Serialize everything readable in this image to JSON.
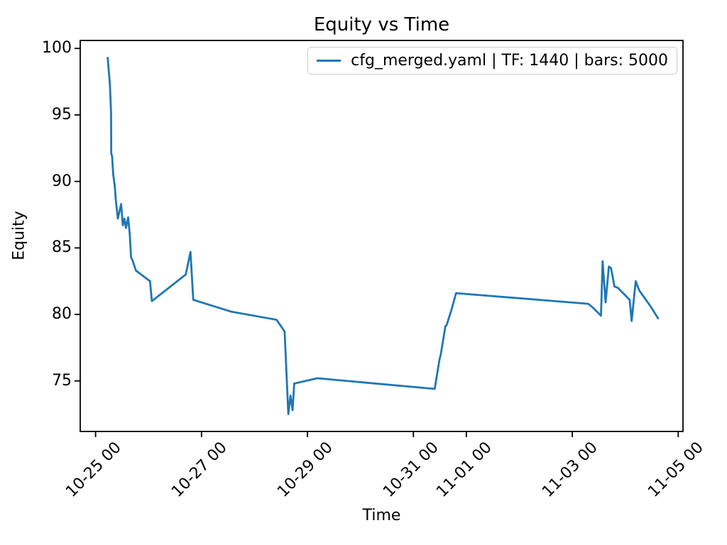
{
  "chart_data": {
    "type": "line",
    "title": "Equity vs Time",
    "xlabel": "Time",
    "ylabel": "Equity",
    "legend": [
      "cfg_merged.yaml | TF: 1440 | bars: 5000"
    ],
    "legend_position": "upper right",
    "grid": false,
    "line_color": "#1f77b4",
    "axis_color": "#000000",
    "x_tick_labels": [
      "10-25 00",
      "10-27 00",
      "10-29 00",
      "10-31 00",
      "11-01 00",
      "11-03 00",
      "11-05 00"
    ],
    "y_tick_values": [
      75,
      80,
      85,
      90,
      95,
      100
    ],
    "xlim_days": [
      -0.29,
      11.09
    ],
    "ylim": [
      71.2,
      100.6
    ],
    "x_origin_label": "10-25 00:00",
    "series": [
      {
        "name": "cfg_merged.yaml | TF: 1440 | bars: 5000",
        "x": [
          "10-25 05:30",
          "10-25 06:30",
          "10-25 07:00",
          "10-25 07:05",
          "10-25 07:30",
          "10-25 08:00",
          "10-25 08:40",
          "10-25 09:10",
          "10-25 10:05",
          "10-25 11:35",
          "10-25 12:20",
          "10-25 13:05",
          "10-25 13:45",
          "10-25 14:45",
          "10-25 15:30",
          "10-25 16:05",
          "10-25 16:40",
          "10-25 18:15",
          "10-26 00:40",
          "10-26 01:30",
          "10-26 16:50",
          "10-26 19:00",
          "10-26 20:15",
          "10-27 13:35",
          "10-28 10:00",
          "10-28 12:05",
          "10-28 13:40",
          "10-28 15:20",
          "10-28 16:20",
          "10-28 17:15",
          "10-28 18:00",
          "10-29 04:30",
          "10-31 09:40",
          "10-31 11:50",
          "10-31 12:25",
          "10-31 14:30",
          "10-31 15:05",
          "10-31 17:10",
          "10-31 19:20",
          "11-03 07:15",
          "11-03 09:25",
          "11-03 13:00",
          "11-03 13:45",
          "11-03 15:05",
          "11-03 16:35",
          "11-03 17:30",
          "11-03 18:20",
          "11-03 19:05",
          "11-03 20:40",
          "11-04 02:00",
          "11-04 02:55",
          "11-04 04:45",
          "11-04 06:20",
          "11-04 11:30",
          "11-04 14:55"
        ],
        "y": [
          99.3,
          97.3,
          95.2,
          92.1,
          91.9,
          90.5,
          89.7,
          88.6,
          87.2,
          88.3,
          86.7,
          87.2,
          86.5,
          87.3,
          86.0,
          84.3,
          84.1,
          83.3,
          82.5,
          81.0,
          83.0,
          84.7,
          81.1,
          80.2,
          79.6,
          79.1,
          78.7,
          72.5,
          73.9,
          72.8,
          74.8,
          75.2,
          74.4,
          76.6,
          77.0,
          79.1,
          79.2,
          80.3,
          81.6,
          80.8,
          80.5,
          79.9,
          84.0,
          80.9,
          83.6,
          83.5,
          82.8,
          82.1,
          82.0,
          81.1,
          79.5,
          82.5,
          81.8,
          80.6,
          79.7
        ]
      }
    ]
  }
}
